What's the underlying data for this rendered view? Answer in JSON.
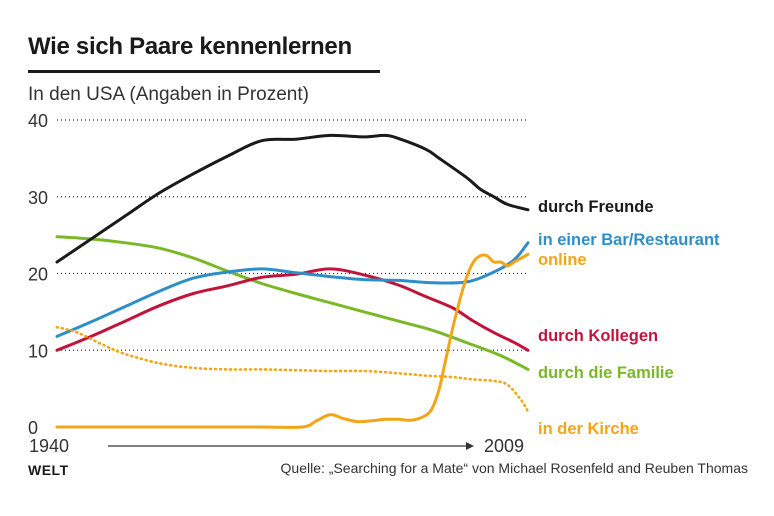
{
  "header": {
    "title": "Wie sich Paare kennenlernen",
    "subtitle": "In den USA (Angaben in Prozent)"
  },
  "footer": {
    "logo": "WELT",
    "source": "Quelle: „Searching for a Mate“ von Michael Rosenfeld and Reuben Thomas"
  },
  "chart_data": {
    "type": "line",
    "title": "Wie sich Paare kennenlernen",
    "subtitle": "In den USA (Angaben in Prozent)",
    "xlabel": "",
    "ylabel": "",
    "x_range": [
      1940,
      2009
    ],
    "x_tick_labels": [
      "1940",
      "2009"
    ],
    "ylim": [
      0,
      40
    ],
    "y_ticks": [
      0,
      10,
      20,
      30,
      40
    ],
    "grid": "horizontal dotted",
    "legend": "direct labels at right end of lines",
    "series": [
      {
        "name": "durch Freunde",
        "color": "#1a1a1a",
        "style": "solid",
        "x": [
          1940,
          1945,
          1950,
          1955,
          1960,
          1965,
          1970,
          1975,
          1980,
          1985,
          1988,
          1990,
          1994,
          1996,
          2000,
          2002,
          2004,
          2006,
          2009
        ],
        "y": [
          21.5,
          24.5,
          27.5,
          30.5,
          33,
          35.3,
          37.3,
          37.5,
          38,
          37.8,
          38,
          37.6,
          36.2,
          35,
          32.5,
          31,
          30,
          29,
          28.3
        ]
      },
      {
        "name": "in einer Bar/Restaurant",
        "color": "#2e8fc8",
        "style": "solid",
        "x": [
          1940,
          1945,
          1950,
          1955,
          1960,
          1965,
          1970,
          1975,
          1980,
          1985,
          1990,
          1995,
          2000,
          2004,
          2007,
          2009
        ],
        "y": [
          11.8,
          13.7,
          15.7,
          17.7,
          19.4,
          20.2,
          20.6,
          20.1,
          19.6,
          19.2,
          19.1,
          18.8,
          18.9,
          20.2,
          21.8,
          24
        ]
      },
      {
        "name": "online",
        "color": "#f2a516",
        "style": "solid",
        "x": [
          1940,
          1950,
          1960,
          1970,
          1976,
          1978,
          1980,
          1982,
          1984,
          1986,
          1988,
          1990,
          1992,
          1994,
          1995,
          1996,
          1997,
          1998,
          1999,
          2000,
          2001,
          2002,
          2003,
          2004,
          2005,
          2006,
          2007,
          2008,
          2009
        ],
        "y": [
          0,
          0,
          0,
          0,
          0,
          0.8,
          1.6,
          1.1,
          0.7,
          0.8,
          1,
          1,
          0.9,
          1.5,
          2.5,
          5,
          9,
          13,
          16.5,
          19.5,
          21.5,
          22.3,
          22.3,
          21.5,
          21.5,
          21,
          21.5,
          22,
          22.5
        ]
      },
      {
        "name": "durch Kollegen",
        "color": "#c0143c",
        "style": "solid",
        "x": [
          1940,
          1945,
          1950,
          1955,
          1960,
          1965,
          1970,
          1975,
          1980,
          1985,
          1990,
          1994,
          1998,
          2001,
          2004,
          2007,
          2009
        ],
        "y": [
          10,
          11.8,
          13.8,
          15.8,
          17.4,
          18.4,
          19.5,
          19.9,
          20.6,
          19.8,
          18.5,
          17,
          15.5,
          13.8,
          12.3,
          11,
          10
        ]
      },
      {
        "name": "durch die Familie",
        "color": "#7ab828",
        "style": "solid",
        "x": [
          1940,
          1945,
          1950,
          1955,
          1960,
          1965,
          1970,
          1975,
          1980,
          1985,
          1990,
          1995,
          2000,
          2005,
          2009
        ],
        "y": [
          24.8,
          24.5,
          24,
          23.3,
          22,
          20.3,
          18.7,
          17.4,
          16.2,
          15,
          13.8,
          12.6,
          11,
          9.3,
          7.5
        ]
      },
      {
        "name": "in der Kirche",
        "color": "#f2a516",
        "style": "dotted",
        "x": [
          1940,
          1943,
          1947,
          1950,
          1955,
          1960,
          1965,
          1970,
          1975,
          1980,
          1985,
          1990,
          1994,
          1998,
          2001,
          2004,
          2006,
          2008,
          2009
        ],
        "y": [
          13,
          12.3,
          10.6,
          9.5,
          8.3,
          7.7,
          7.5,
          7.5,
          7.4,
          7.3,
          7.3,
          7,
          6.7,
          6.5,
          6.2,
          6,
          5.5,
          3.5,
          2
        ]
      }
    ]
  }
}
